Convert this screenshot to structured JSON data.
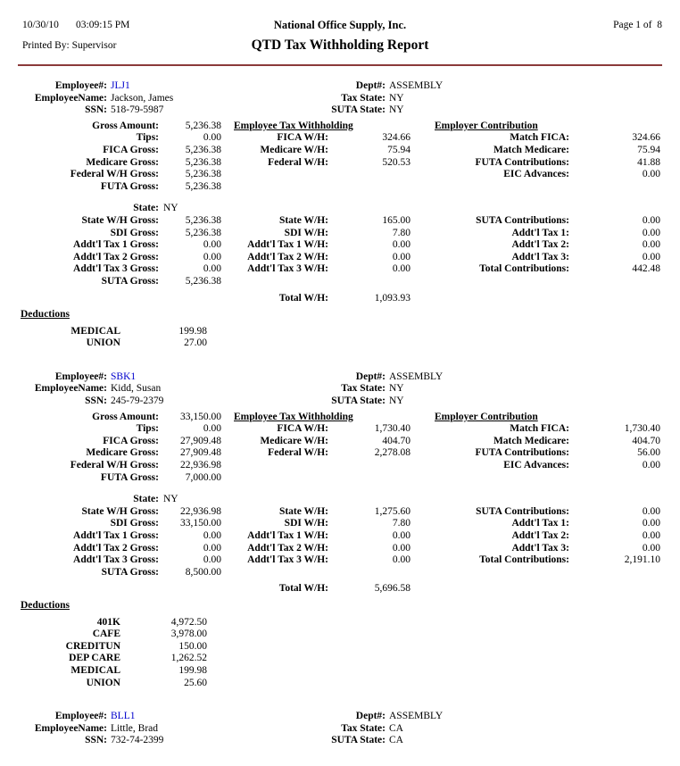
{
  "header": {
    "date": "10/30/10",
    "time": "03:09:15 PM",
    "printed_by": "Printed By: Supervisor",
    "company": "National Office Supply, Inc.",
    "title": "QTD Tax Withholding Report",
    "page": "Page 1 of  8"
  },
  "labels": {
    "employee_no": "Employee#:",
    "dept": "Dept#:",
    "employee_name": "EmployeeName:",
    "tax_state": "Tax State:",
    "ssn": "SSN:",
    "suta_state": "SUTA State:",
    "section_employee_tax": "Employee Tax Withholding",
    "section_employer_contrib": "Employer Contribution",
    "deductions": "Deductions",
    "state": "State:",
    "suta_gross": "SUTA Gross:",
    "total_wh": "Total W/H:",
    "left_top": [
      "Gross Amount:",
      "Tips:",
      "FICA Gross:",
      "Medicare Gross:",
      "Federal W/H Gross:",
      "FUTA Gross:"
    ],
    "left_state": [
      "State W/H Gross:",
      "SDI Gross:",
      "Addt'l Tax 1 Gross:",
      "Addt'l Tax 2 Gross:",
      "Addt'l Tax 3 Gross:"
    ],
    "mid_top": [
      "FICA W/H:",
      "Medicare W/H:",
      "Federal W/H:"
    ],
    "mid_state": [
      "State W/H:",
      "SDI W/H:",
      "Addt'l Tax 1 W/H:",
      "Addt'l Tax 2 W/H:",
      "Addt'l Tax 3 W/H:"
    ],
    "right_top": [
      "Match FICA:",
      "Match Medicare:",
      "FUTA Contributions:",
      "EIC Advances:"
    ],
    "right_state": [
      "SUTA Contributions:",
      "Addt'l Tax 1:",
      "Addt'l Tax 2:",
      "Addt'l Tax 3:",
      "Total Contributions:"
    ]
  },
  "employees": [
    {
      "number": "JLJ1",
      "dept": "ASSEMBLY",
      "name": "Jackson, James",
      "tax_state": "NY",
      "ssn": "518-79-5987",
      "suta_state": "NY",
      "left_top": [
        "5,236.38",
        "0.00",
        "5,236.38",
        "5,236.38",
        "5,236.38",
        "5,236.38"
      ],
      "state": "NY",
      "left_state": [
        "5,236.38",
        "5,236.38",
        "0.00",
        "0.00",
        "0.00"
      ],
      "suta_gross": "5,236.38",
      "mid_top": [
        "324.66",
        "75.94",
        "520.53"
      ],
      "mid_state": [
        "165.00",
        "7.80",
        "0.00",
        "0.00",
        "0.00"
      ],
      "total_wh": "1,093.93",
      "right_top": [
        "324.66",
        "75.94",
        "41.88",
        "0.00"
      ],
      "right_state": [
        "0.00",
        "0.00",
        "0.00",
        "0.00",
        "442.48"
      ],
      "deductions": [
        [
          "MEDICAL",
          "199.98"
        ],
        [
          "UNION",
          "27.00"
        ]
      ]
    },
    {
      "number": "SBK1",
      "dept": "ASSEMBLY",
      "name": "Kidd, Susan",
      "tax_state": "NY",
      "ssn": "245-79-2379",
      "suta_state": "NY",
      "left_top": [
        "33,150.00",
        "0.00",
        "27,909.48",
        "27,909.48",
        "22,936.98",
        "7,000.00"
      ],
      "state": "NY",
      "left_state": [
        "22,936.98",
        "33,150.00",
        "0.00",
        "0.00",
        "0.00"
      ],
      "suta_gross": "8,500.00",
      "mid_top": [
        "1,730.40",
        "404.70",
        "2,278.08"
      ],
      "mid_state": [
        "1,275.60",
        "7.80",
        "0.00",
        "0.00",
        "0.00"
      ],
      "total_wh": "5,696.58",
      "right_top": [
        "1,730.40",
        "404.70",
        "56.00",
        "0.00"
      ],
      "right_state": [
        "0.00",
        "0.00",
        "0.00",
        "0.00",
        "2,191.10"
      ],
      "deductions": [
        [
          "401K",
          "4,972.50"
        ],
        [
          "CAFE",
          "3,978.00"
        ],
        [
          "CREDITUN",
          "150.00"
        ],
        [
          "DEP CARE",
          "1,262.52"
        ],
        [
          "MEDICAL",
          "199.98"
        ],
        [
          "UNION",
          "25.60"
        ]
      ]
    },
    {
      "number": "BLL1",
      "dept": "ASSEMBLY",
      "name": "Little, Brad",
      "tax_state": "CA",
      "ssn": "732-74-2399",
      "suta_state": "CA"
    }
  ]
}
